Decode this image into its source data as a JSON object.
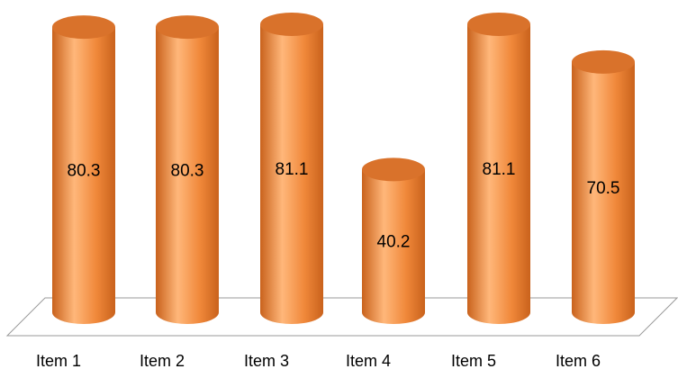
{
  "chart_data": {
    "type": "bar",
    "style": "3d-cylinder",
    "categories": [
      "Item 1",
      "Item 2",
      "Item 3",
      "Item 4",
      "Item 5",
      "Item 6"
    ],
    "values": [
      80.3,
      80.3,
      81.1,
      40.2,
      81.1,
      70.5
    ],
    "data_labels": [
      "80.3",
      "80.3",
      "81.1",
      "40.2",
      "81.1",
      "70.5"
    ],
    "title": "",
    "xlabel": "",
    "ylabel": "",
    "ylim": [
      0,
      90
    ],
    "grid": false,
    "legend": "none",
    "colors": {
      "bar": "#f0883a",
      "bar_dark": "#c9621c",
      "bar_light": "#ffb77a",
      "top": "#d9722b",
      "floor_line": "#9a9a9a",
      "text": "#000000"
    }
  }
}
